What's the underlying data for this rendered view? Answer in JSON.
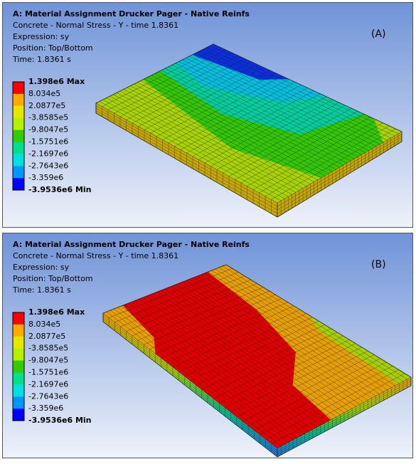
{
  "panels": [
    {
      "title": "A: Material Assignment Drucker Pager - Native Reinfs",
      "lines": [
        "Concrete - Normal Stress - Y - time 1.8361",
        "Expression: sy",
        "Position: Top/Bottom",
        "Time: 1.8361 s"
      ],
      "tag": "(A)",
      "legend": {
        "labels": [
          "1.398e6 Max",
          "8.034e5",
          "2.0877e5",
          "-3.8585e5",
          "-9.8047e5",
          "-1.5751e6",
          "-2.1697e6",
          "-2.7643e6",
          "-3.359e6",
          "-3.9536e6 Min"
        ],
        "colors": [
          "#ff0000",
          "#ffaa00",
          "#e6e600",
          "#b4f000",
          "#33cc00",
          "#00e08c",
          "#00e0e0",
          "#0096ff",
          "#0000ff"
        ]
      }
    },
    {
      "title": "A: Material Assignment Drucker Pager - Native Reinfs",
      "lines": [
        "Concrete - Normal Stress - Y - time 1.8361",
        "Expression: sy",
        "Position: Top/Bottom",
        "Time: 1.8361 s"
      ],
      "tag": "(B)",
      "legend": {
        "labels": [
          "1.398e6 Max",
          "8.034e5",
          "2.0877e5",
          "-3.8585e5",
          "-9.8047e5",
          "-1.5751e6",
          "-2.1697e6",
          "-2.7643e6",
          "-3.359e6",
          "-3.9536e6 Min"
        ],
        "colors": [
          "#ff0000",
          "#ffaa00",
          "#e6e600",
          "#b4f000",
          "#33cc00",
          "#00e08c",
          "#00e0e0",
          "#0096ff",
          "#0000ff"
        ]
      }
    }
  ]
}
